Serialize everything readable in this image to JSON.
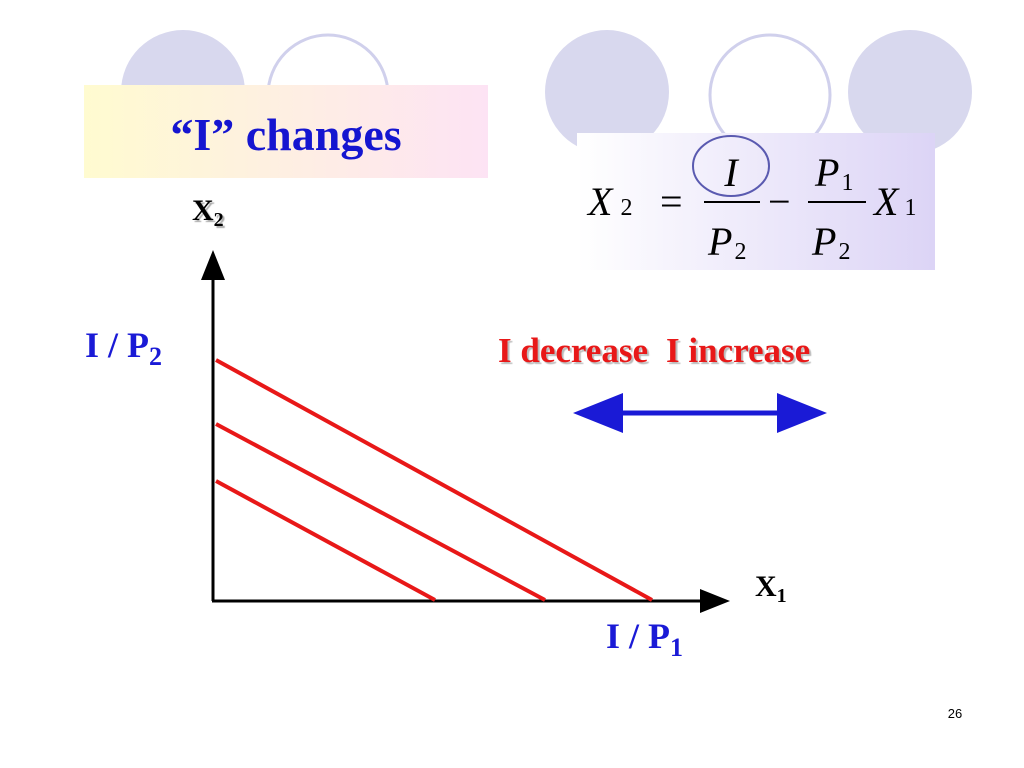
{
  "title": "“I” changes",
  "equation": {
    "lhs": {
      "base": "X",
      "sub": "2"
    },
    "equals": "=",
    "fraction_1": {
      "numerator": "I",
      "denominator": {
        "base": "P",
        "sub": "2"
      }
    },
    "minus": "−",
    "fraction_2": {
      "numerator": {
        "base": "P",
        "sub": "1"
      },
      "denominator": {
        "base": "P",
        "sub": "2"
      }
    },
    "rhs": {
      "base": "X",
      "sub": "1"
    }
  },
  "axes": {
    "y_label": {
      "base": "X",
      "sub": "2"
    },
    "x_label": {
      "base": "X",
      "sub": "1"
    },
    "y_intercept": {
      "base": "I / P",
      "sub": "2"
    },
    "x_intercept": {
      "base": "I / P",
      "sub": "1"
    }
  },
  "direction": {
    "left": "I decrease",
    "right": "I increase"
  },
  "page_number": "26"
}
